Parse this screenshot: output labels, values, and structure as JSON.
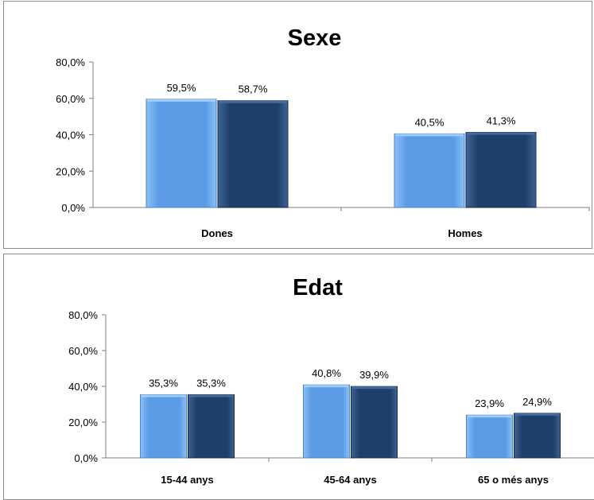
{
  "chart_data": [
    {
      "type": "bar",
      "title": "Sexe",
      "categories": [
        "Dones",
        "Homes"
      ],
      "series": [
        {
          "values": [
            59.5,
            40.5
          ],
          "labels": [
            "59,5%",
            "40,5%"
          ]
        },
        {
          "values": [
            58.7,
            41.3
          ],
          "labels": [
            "58,7%",
            "41,3%"
          ]
        }
      ],
      "yticks": [
        "0,0%",
        "20,0%",
        "40,0%",
        "60,0%",
        "80,0%"
      ],
      "ylim": [
        0,
        80
      ],
      "xlabel": "",
      "ylabel": "",
      "grid": false,
      "legend": "none"
    },
    {
      "type": "bar",
      "title": "Edat",
      "categories": [
        "15-44 anys",
        "45-64 anys",
        "65 o més anys"
      ],
      "series": [
        {
          "values": [
            35.3,
            40.8,
            23.9
          ],
          "labels": [
            "35,3%",
            "40,8%",
            "23,9%"
          ]
        },
        {
          "values": [
            35.3,
            39.9,
            24.9
          ],
          "labels": [
            "35,3%",
            "39,9%",
            "24,9%"
          ]
        }
      ],
      "yticks": [
        "0,0%",
        "20,0%",
        "40,0%",
        "60,0%",
        "80,0%"
      ],
      "ylim": [
        0,
        80
      ],
      "xlabel": "",
      "ylabel": "",
      "grid": false,
      "legend": "none"
    }
  ],
  "colors": {
    "series_1": "#5b9be6",
    "series_1_light": "#8cc0f5",
    "series_2": "#1f3f6b",
    "series_2_light": "#3e6292",
    "axis": "#7f7f7f",
    "text": "#000000"
  }
}
